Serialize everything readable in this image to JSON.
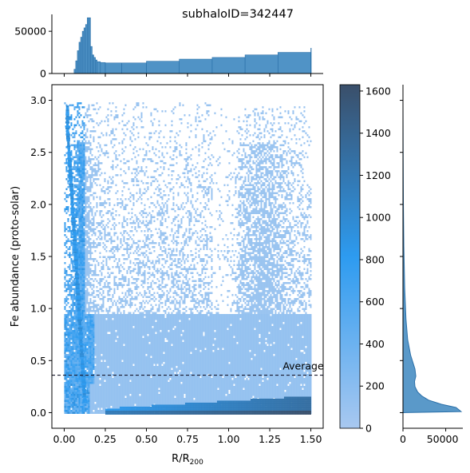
{
  "chart_data": {
    "type": "heatmap",
    "title": "subhaloID=342447",
    "xlabel": "R/R",
    "xlabel_sub": "200",
    "ylabel": "Fe abundance (proto-solar)",
    "xlim": [
      -0.075,
      1.575
    ],
    "ylim": [
      -0.15,
      3.15
    ],
    "xticks": [
      0.0,
      0.25,
      0.5,
      0.75,
      1.0,
      1.25,
      1.5
    ],
    "xtick_labels": [
      "0.00",
      "0.25",
      "0.50",
      "0.75",
      "1.00",
      "1.25",
      "1.50"
    ],
    "yticks": [
      0.0,
      0.5,
      1.0,
      1.5,
      2.0,
      2.5,
      3.0
    ],
    "ytick_labels": [
      "0.0",
      "0.5",
      "1.0",
      "1.5",
      "2.0",
      "2.5",
      "3.0"
    ],
    "average": {
      "value": 0.36,
      "label": "Average"
    },
    "colorbar": {
      "range": [
        0,
        1630
      ],
      "ticks": [
        0,
        200,
        400,
        600,
        800,
        1000,
        1200,
        1400,
        1600
      ],
      "tick_labels": [
        "0",
        "200",
        "400",
        "600",
        "800",
        "1000",
        "1200",
        "1400",
        "1600"
      ],
      "colors": [
        "#a8c8f0",
        "#2d9bf0",
        "#3a4f6a"
      ]
    },
    "marginal_x": {
      "ylim": [
        0,
        70000
      ],
      "yticks": [
        0,
        50000
      ],
      "ytick_labels": [
        "0",
        "50000"
      ],
      "bins": [
        {
          "x": 0.06,
          "count": 5000
        },
        {
          "x": 0.07,
          "count": 15000
        },
        {
          "x": 0.08,
          "count": 27000
        },
        {
          "x": 0.09,
          "count": 37000
        },
        {
          "x": 0.1,
          "count": 43000
        },
        {
          "x": 0.11,
          "count": 50000
        },
        {
          "x": 0.12,
          "count": 54000
        },
        {
          "x": 0.13,
          "count": 58000
        },
        {
          "x": 0.14,
          "count": 66000
        },
        {
          "x": 0.15,
          "count": 66000
        },
        {
          "x": 0.16,
          "count": 32000
        },
        {
          "x": 0.17,
          "count": 22000
        },
        {
          "x": 0.18,
          "count": 19000
        },
        {
          "x": 0.19,
          "count": 16000
        },
        {
          "x": 0.2,
          "count": 14000
        },
        {
          "x": 0.22,
          "count": 13000
        },
        {
          "x": 0.25,
          "count": 12500
        },
        {
          "x": 0.35,
          "count": 12500
        },
        {
          "x": 0.5,
          "count": 14500
        },
        {
          "x": 0.7,
          "count": 17000
        },
        {
          "x": 0.9,
          "count": 19000
        },
        {
          "x": 1.1,
          "count": 22000
        },
        {
          "x": 1.3,
          "count": 25000
        },
        {
          "x": 1.5,
          "count": 30000
        }
      ],
      "color": "#3d87c0"
    },
    "marginal_y": {
      "xlim": [
        0,
        70000
      ],
      "xticks": [
        0,
        50000
      ],
      "xtick_labels": [
        "0",
        "50000"
      ],
      "profile": [
        {
          "y": 0.0,
          "count": 0
        },
        {
          "y": 0.01,
          "count": 68000
        },
        {
          "y": 0.03,
          "count": 65000
        },
        {
          "y": 0.05,
          "count": 62000
        },
        {
          "y": 0.08,
          "count": 45000
        },
        {
          "y": 0.12,
          "count": 30000
        },
        {
          "y": 0.16,
          "count": 22000
        },
        {
          "y": 0.2,
          "count": 17000
        },
        {
          "y": 0.25,
          "count": 14000
        },
        {
          "y": 0.3,
          "count": 13500
        },
        {
          "y": 0.35,
          "count": 15000
        },
        {
          "y": 0.42,
          "count": 14000
        },
        {
          "y": 0.55,
          "count": 9000
        },
        {
          "y": 0.7,
          "count": 5500
        },
        {
          "y": 0.9,
          "count": 3500
        },
        {
          "y": 1.2,
          "count": 2000
        },
        {
          "y": 1.6,
          "count": 1000
        },
        {
          "y": 2.0,
          "count": 500
        },
        {
          "y": 2.5,
          "count": 200
        },
        {
          "y": 3.0,
          "count": 0
        }
      ],
      "color": "#3d87c0"
    }
  }
}
